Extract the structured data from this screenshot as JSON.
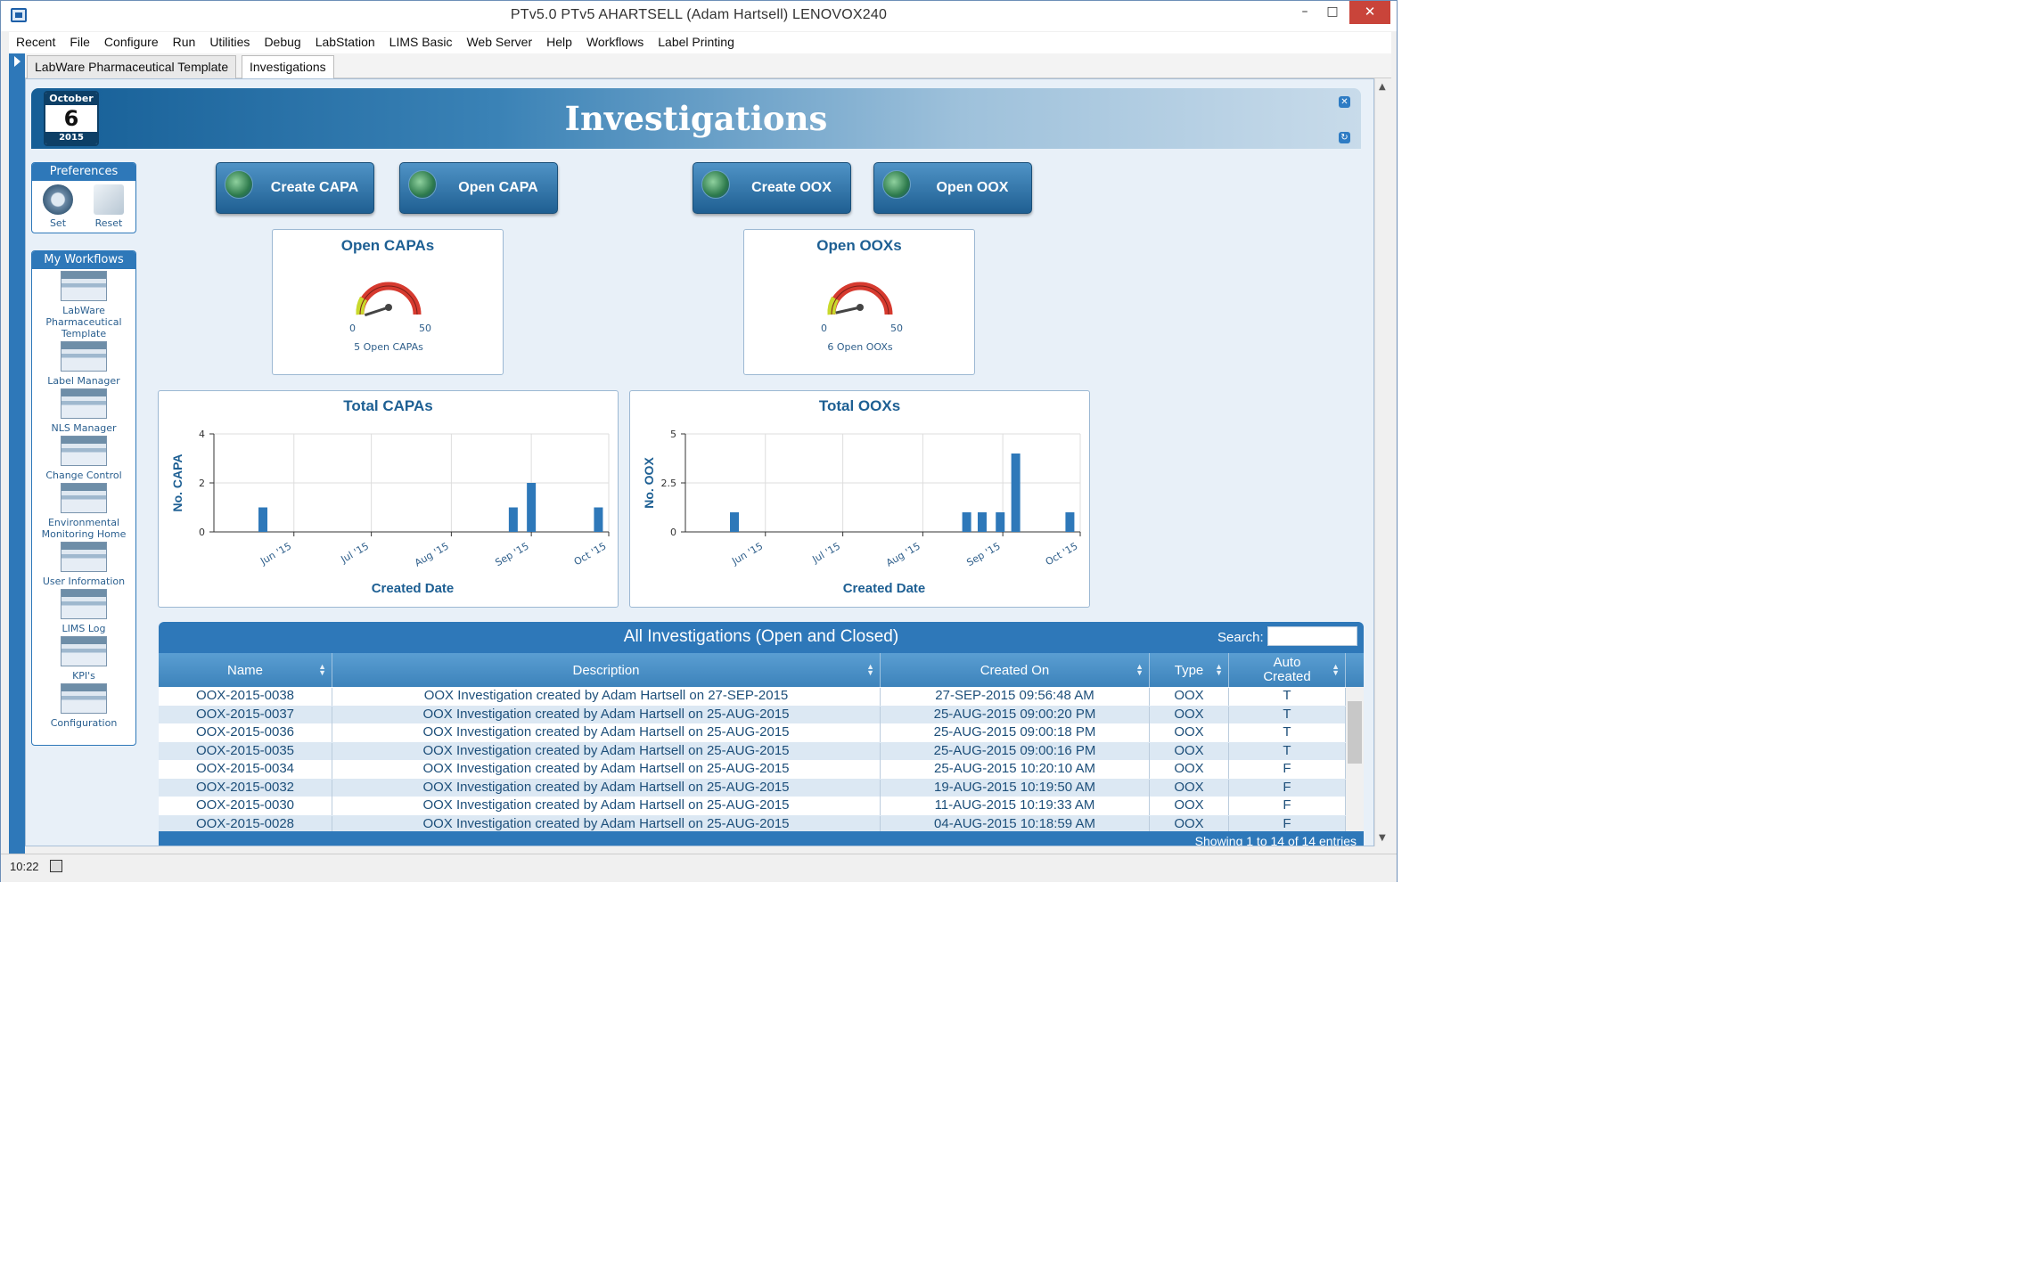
{
  "window": {
    "title": "PTv5.0    PTv5    AHARTSELL (Adam Hartsell)    LENOVOX240",
    "minimize": "–",
    "maximize": "□",
    "close": "✕"
  },
  "menu": [
    "Recent",
    "File",
    "Configure",
    "Run",
    "Utilities",
    "Debug",
    "LabStation",
    "LIMS Basic",
    "Web Server",
    "Help",
    "Workflows",
    "Label Printing"
  ],
  "tabs": [
    {
      "label": "LabWare Pharmaceutical Template",
      "active": false
    },
    {
      "label": "Investigations",
      "active": true
    }
  ],
  "header": {
    "title": "Investigations"
  },
  "calendar": {
    "month": "October",
    "day": "6",
    "year": "2015"
  },
  "preferences": {
    "title": "Preferences",
    "set_label": "Set",
    "reset_label": "Reset"
  },
  "workflows": {
    "title": "My Workflows",
    "items": [
      "LabWare Pharmaceutical Template",
      "Label Manager",
      "NLS Manager",
      "Change Control",
      "Environmental Monitoring Home",
      "User Information",
      "LIMS Log",
      "KPI's",
      "Configuration"
    ]
  },
  "actions": {
    "create_capa": "Create CAPA",
    "open_capa": "Open CAPA",
    "create_oox": "Create OOX",
    "open_oox": "Open OOX"
  },
  "gauges": {
    "capa": {
      "title": "Open CAPAs",
      "min": "0",
      "max": "50",
      "value": 5,
      "caption": "5 Open CAPAs"
    },
    "oox": {
      "title": "Open OOXs",
      "min": "0",
      "max": "50",
      "value": 6,
      "caption": "6 Open OOXs"
    }
  },
  "chart_data": [
    {
      "type": "bar",
      "title": "Total CAPAs",
      "xlabel": "Created Date",
      "ylabel": "No. CAPA",
      "ylim": [
        0,
        4
      ],
      "yticks": [
        "0",
        "2",
        "4"
      ],
      "xticks": [
        "Jun '15",
        "Jul '15",
        "Aug '15",
        "Sep '15",
        "Oct '15"
      ],
      "grid": true,
      "x": [
        "2015-05-20",
        "2015-08-25",
        "2015-09-01",
        "2015-09-27"
      ],
      "values": [
        1,
        1,
        2,
        1
      ]
    },
    {
      "type": "bar",
      "title": "Total OOXs",
      "xlabel": "Created Date",
      "ylabel": "No. OOX",
      "ylim": [
        0,
        5
      ],
      "yticks": [
        "0",
        "2.5",
        "5"
      ],
      "xticks": [
        "Jun '15",
        "Jul '15",
        "Aug '15",
        "Sep '15",
        "Oct '15"
      ],
      "grid": true,
      "x": [
        "2015-05-20",
        "2015-08-18",
        "2015-08-24",
        "2015-08-31",
        "2015-09-06",
        "2015-09-27"
      ],
      "values": [
        1,
        1,
        1,
        1,
        4,
        1
      ]
    }
  ],
  "table": {
    "title": "All Investigations (Open and Closed)",
    "search_label": "Search:",
    "columns": [
      "Name",
      "Description",
      "Created On",
      "Type",
      "Auto Created"
    ],
    "rows": [
      [
        "OOX-2015-0038",
        "OOX Investigation created by Adam Hartsell on 27-SEP-2015",
        "27-SEP-2015 09:56:48 AM",
        "OOX",
        "T"
      ],
      [
        "OOX-2015-0037",
        "OOX Investigation created by Adam Hartsell on 25-AUG-2015",
        "25-AUG-2015 09:00:20 PM",
        "OOX",
        "T"
      ],
      [
        "OOX-2015-0036",
        "OOX Investigation created by Adam Hartsell on 25-AUG-2015",
        "25-AUG-2015 09:00:18 PM",
        "OOX",
        "T"
      ],
      [
        "OOX-2015-0035",
        "OOX Investigation created by Adam Hartsell on 25-AUG-2015",
        "25-AUG-2015 09:00:16 PM",
        "OOX",
        "T"
      ],
      [
        "OOX-2015-0034",
        "OOX Investigation created by Adam Hartsell on 25-AUG-2015",
        "25-AUG-2015 10:20:10 AM",
        "OOX",
        "F"
      ],
      [
        "OOX-2015-0032",
        "OOX Investigation created by Adam Hartsell on 25-AUG-2015",
        "19-AUG-2015 10:19:50 AM",
        "OOX",
        "F"
      ],
      [
        "OOX-2015-0030",
        "OOX Investigation created by Adam Hartsell on 25-AUG-2015",
        "11-AUG-2015 10:19:33 AM",
        "OOX",
        "F"
      ],
      [
        "OOX-2015-0028",
        "OOX Investigation created by Adam Hartsell on 25-AUG-2015",
        "04-AUG-2015 10:18:59 AM",
        "OOX",
        "F"
      ]
    ],
    "footer": "Showing 1 to 14 of 14 entries"
  },
  "status": {
    "clock": "10:22"
  },
  "colors": {
    "accent": "#2e78b9",
    "header_dark": "#155e96",
    "bar": "#2e78b9",
    "title_text": "#1d5f93"
  }
}
